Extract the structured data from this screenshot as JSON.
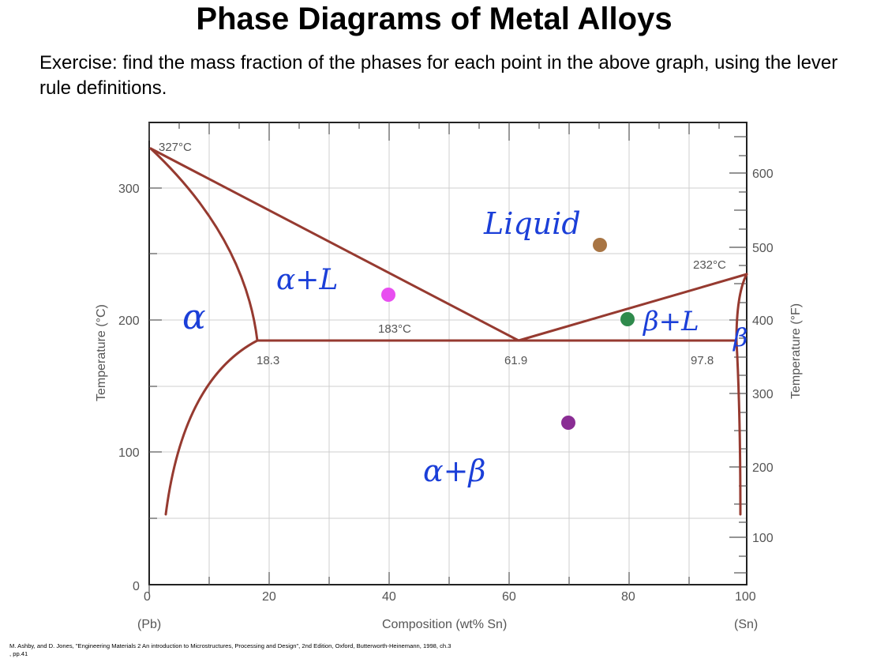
{
  "title": "Phase Diagrams of Metal Alloys",
  "subtitle": "Exercise: find the mass fraction of the phases for each point in the above graph, using the lever rule definitions.",
  "citation": "M. Ashby, and D. Jones, \"Engineering Materials 2 An introduction to Microstructures, Processing and Design\", 2nd Edition, Oxford, Butterworth-Heinemann, 1998, ch.3 , pp.41",
  "diagram": {
    "x_axis": {
      "title": "Composition (wt% Sn)",
      "ticks": [
        "0",
        "20",
        "40",
        "60",
        "80",
        "100"
      ],
      "left_end_label": "(Pb)",
      "right_end_label": "(Sn)"
    },
    "y_axis_left": {
      "title": "Temperature (°C)",
      "ticks": [
        "0",
        "100",
        "200",
        "300"
      ]
    },
    "y_axis_right": {
      "title": "Temperature (°F)",
      "ticks": [
        "100",
        "200",
        "300",
        "400",
        "500",
        "600"
      ]
    },
    "annotations": {
      "pb_melting": "327°C",
      "sn_melting": "232°C",
      "eutectic_temp": "183°C",
      "alpha_limit": "18.3",
      "eutectic_comp": "61.9",
      "beta_limit": "97.8"
    },
    "regions": {
      "liquid": "Liquid",
      "alpha": "α",
      "alpha_l": "α+L",
      "beta_l": "β+L",
      "beta": "β",
      "alpha_beta": "α+β"
    },
    "points": [
      {
        "composition_wt_pct_sn": 40,
        "temperature_c": 218,
        "color": "#e84ff0"
      },
      {
        "composition_wt_pct_sn": 75.5,
        "temperature_c": 256,
        "color": "#a87544"
      },
      {
        "composition_wt_pct_sn": 80,
        "temperature_c": 200,
        "color": "#2f8a4c"
      },
      {
        "composition_wt_pct_sn": 70,
        "temperature_c": 122,
        "color": "#8a2d94"
      }
    ],
    "phase_line_color": "#963a30"
  }
}
